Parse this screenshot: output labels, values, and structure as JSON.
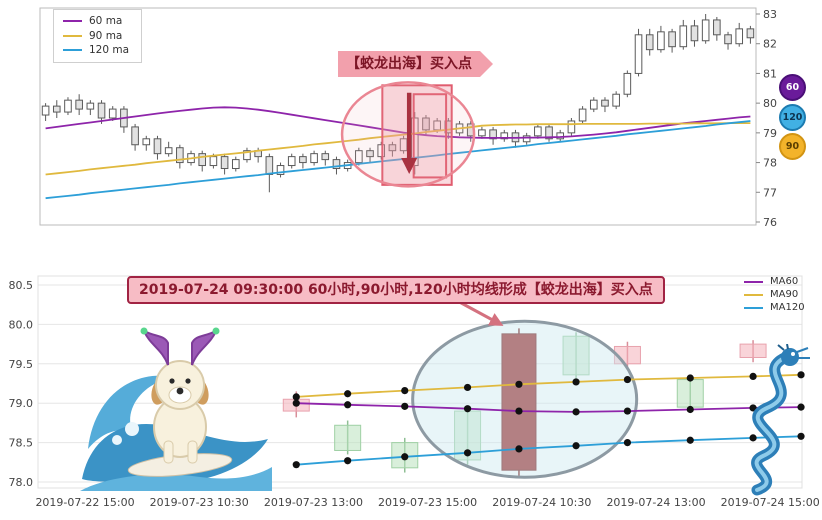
{
  "colors": {
    "ma60": "#8e24aa",
    "ma90": "#e0b93e",
    "ma120": "#2d9fd8",
    "axis_text": "#444444",
    "grid": "#e6e6e6",
    "highlight_fill": "rgba(240,150,162,0.35)",
    "highlight_stroke": "#e05c6e",
    "arrow": "#a83240",
    "big_candle": "#9e2b2b",
    "up_fill": "rgba(244,176,186,0.55)",
    "up_stroke": "#e8a2ad",
    "down_fill": "rgba(186,226,190,0.55)",
    "down_stroke": "#9fd0a4",
    "dot": "#111111",
    "ellipse_bottom_fill": "rgba(205,232,240,0.45)",
    "ellipse_bottom_stroke": "#8d9aa3"
  },
  "top_chart": {
    "legend": [
      {
        "label": "60 ma",
        "color": "#8e24aa"
      },
      {
        "label": "90 ma",
        "color": "#e0b93e"
      },
      {
        "label": "120 ma",
        "color": "#2d9fd8"
      }
    ],
    "annotation": {
      "text": "【蛟龙出海】买入点"
    },
    "badges": [
      {
        "label": "60",
        "bg": "#6a1b9a",
        "fg": "#ffffff",
        "border": "#4a0f77"
      },
      {
        "label": "120",
        "bg": "#41b0e4",
        "fg": "#0d3550",
        "border": "#1c7bb0"
      },
      {
        "label": "90",
        "bg": "#f3b32a",
        "fg": "#5a3d00",
        "border": "#d29413"
      }
    ]
  },
  "bottom_chart": {
    "legend": [
      {
        "label": "MA60",
        "color": "#8e24aa"
      },
      {
        "label": "MA90",
        "color": "#e0b93e"
      },
      {
        "label": "MA120",
        "color": "#2d9fd8"
      }
    ],
    "annotation": {
      "text": "2019-07-24 09:30:00 60小时,90小时,120小时均线形成【蛟龙出海】买入点"
    }
  },
  "chart_data": [
    {
      "type": "candlestick",
      "title": "",
      "xlabel": "",
      "ylabel": "",
      "legend_position": "top-left",
      "grid": false,
      "y_ticks": [
        83,
        82,
        81,
        80,
        79,
        78,
        77,
        76
      ],
      "ylim": [
        75.9,
        83.2
      ],
      "candles": [
        [
          79.6,
          80.0,
          79.4,
          79.9
        ],
        [
          79.9,
          80.1,
          79.5,
          79.7
        ],
        [
          79.7,
          80.2,
          79.6,
          80.1
        ],
        [
          80.1,
          80.3,
          79.6,
          79.8
        ],
        [
          79.8,
          80.1,
          79.6,
          80.0
        ],
        [
          80.0,
          80.1,
          79.3,
          79.5
        ],
        [
          79.5,
          79.9,
          79.4,
          79.8
        ],
        [
          79.8,
          79.9,
          79.0,
          79.2
        ],
        [
          79.2,
          79.3,
          78.4,
          78.6
        ],
        [
          78.6,
          78.9,
          78.4,
          78.8
        ],
        [
          78.8,
          78.9,
          78.1,
          78.3
        ],
        [
          78.3,
          78.7,
          78.2,
          78.5
        ],
        [
          78.5,
          78.6,
          77.8,
          78.0
        ],
        [
          78.0,
          78.4,
          77.9,
          78.3
        ],
        [
          78.3,
          78.4,
          77.7,
          77.9
        ],
        [
          77.9,
          78.3,
          77.8,
          78.2
        ],
        [
          78.2,
          78.3,
          77.6,
          77.8
        ],
        [
          77.8,
          78.2,
          77.7,
          78.1
        ],
        [
          78.1,
          78.5,
          78.0,
          78.4
        ],
        [
          78.4,
          78.5,
          78.0,
          78.2
        ],
        [
          78.2,
          78.3,
          77.0,
          77.6
        ],
        [
          77.6,
          78.0,
          77.5,
          77.9
        ],
        [
          77.9,
          78.3,
          77.8,
          78.2
        ],
        [
          78.2,
          78.3,
          77.8,
          78.0
        ],
        [
          78.0,
          78.4,
          77.9,
          78.3
        ],
        [
          78.3,
          78.4,
          77.9,
          78.1
        ],
        [
          78.1,
          78.2,
          77.6,
          77.8
        ],
        [
          77.8,
          78.1,
          77.7,
          78.0
        ],
        [
          78.0,
          78.5,
          77.9,
          78.4
        ],
        [
          78.4,
          78.5,
          78.0,
          78.2
        ],
        [
          78.2,
          78.7,
          78.1,
          78.6
        ],
        [
          78.6,
          78.7,
          78.2,
          78.4
        ],
        [
          78.4,
          78.9,
          78.3,
          78.8
        ],
        [
          77.9,
          79.7,
          77.6,
          79.5
        ],
        [
          79.5,
          79.6,
          78.9,
          79.1
        ],
        [
          79.1,
          79.5,
          79.0,
          79.4
        ],
        [
          79.4,
          79.5,
          78.8,
          79.0
        ],
        [
          79.0,
          79.4,
          78.9,
          79.3
        ],
        [
          79.3,
          79.4,
          78.7,
          78.9
        ],
        [
          78.9,
          79.2,
          78.8,
          79.1
        ],
        [
          79.1,
          79.2,
          78.6,
          78.8
        ],
        [
          78.8,
          79.1,
          78.7,
          79.0
        ],
        [
          79.0,
          79.1,
          78.5,
          78.7
        ],
        [
          78.7,
          79.0,
          78.6,
          78.9
        ],
        [
          78.9,
          79.3,
          78.8,
          79.2
        ],
        [
          79.2,
          79.3,
          78.7,
          78.8
        ],
        [
          78.8,
          79.1,
          78.7,
          79.0
        ],
        [
          79.0,
          79.5,
          78.9,
          79.4
        ],
        [
          79.4,
          79.9,
          79.3,
          79.8
        ],
        [
          79.8,
          80.2,
          79.7,
          80.1
        ],
        [
          80.1,
          80.2,
          79.7,
          79.9
        ],
        [
          79.9,
          80.4,
          79.8,
          80.3
        ],
        [
          80.3,
          81.1,
          80.2,
          81.0
        ],
        [
          81.0,
          82.5,
          80.9,
          82.3
        ],
        [
          82.3,
          82.5,
          81.6,
          81.8
        ],
        [
          81.8,
          82.6,
          81.7,
          82.4
        ],
        [
          82.4,
          82.5,
          81.7,
          81.9
        ],
        [
          81.9,
          82.8,
          81.8,
          82.6
        ],
        [
          82.6,
          82.8,
          81.9,
          82.1
        ],
        [
          82.1,
          83.0,
          82.0,
          82.8
        ],
        [
          82.8,
          82.9,
          82.1,
          82.3
        ],
        [
          82.3,
          82.4,
          81.8,
          82.0
        ],
        [
          82.0,
          82.7,
          81.9,
          82.5
        ],
        [
          82.5,
          82.6,
          82.0,
          82.2
        ]
      ],
      "series": [
        {
          "name": "60 ma",
          "color": "#8e24aa",
          "values": [
            79.15,
            79.2,
            79.25,
            79.3,
            79.35,
            79.4,
            79.45,
            79.5,
            79.55,
            79.6,
            79.65,
            79.7,
            79.74,
            79.78,
            79.82,
            79.85,
            79.86,
            79.85,
            79.82,
            79.78,
            79.73,
            79.67,
            79.61,
            79.55,
            79.49,
            79.43,
            79.37,
            79.31,
            79.25,
            79.19,
            79.13,
            79.07,
            79.01,
            78.96,
            78.92,
            78.89,
            78.87,
            78.85,
            78.84,
            78.83,
            78.83,
            78.83,
            78.83,
            78.84,
            78.84,
            78.85,
            78.86,
            78.88,
            78.91,
            78.94,
            78.98,
            79.02,
            79.07,
            79.12,
            79.17,
            79.22,
            79.27,
            79.32,
            79.36,
            79.4,
            79.44,
            79.48,
            79.52,
            79.55
          ]
        },
        {
          "name": "90 ma",
          "color": "#e0b93e",
          "values": [
            77.6,
            77.64,
            77.68,
            77.72,
            77.77,
            77.81,
            77.85,
            77.89,
            77.93,
            77.98,
            78.02,
            78.06,
            78.1,
            78.14,
            78.19,
            78.23,
            78.27,
            78.31,
            78.35,
            78.4,
            78.44,
            78.48,
            78.52,
            78.56,
            78.61,
            78.65,
            78.69,
            78.73,
            78.77,
            78.82,
            78.86,
            78.9,
            78.94,
            78.98,
            79.03,
            79.07,
            79.11,
            79.15,
            79.19,
            79.24,
            79.26,
            79.27,
            79.28,
            79.28,
            79.29,
            79.29,
            79.29,
            79.29,
            79.3,
            79.3,
            79.3,
            79.3,
            79.3,
            79.3,
            79.31,
            79.31,
            79.31,
            79.31,
            79.32,
            79.32,
            79.32,
            79.33,
            79.33,
            79.33
          ]
        },
        {
          "name": "120 ma",
          "color": "#2d9fd8",
          "values": [
            76.8,
            76.84,
            76.88,
            76.92,
            76.97,
            77.01,
            77.05,
            77.09,
            77.13,
            77.17,
            77.21,
            77.25,
            77.3,
            77.34,
            77.38,
            77.42,
            77.46,
            77.5,
            77.54,
            77.58,
            77.63,
            77.67,
            77.71,
            77.75,
            77.79,
            77.83,
            77.87,
            77.91,
            77.96,
            78.0,
            78.04,
            78.08,
            78.12,
            78.16,
            78.2,
            78.24,
            78.29,
            78.33,
            78.37,
            78.41,
            78.45,
            78.49,
            78.53,
            78.57,
            78.62,
            78.66,
            78.7,
            78.74,
            78.78,
            78.82,
            78.86,
            78.9,
            78.95,
            78.99,
            79.03,
            79.07,
            79.11,
            79.15,
            79.19,
            79.23,
            79.28,
            79.32,
            79.36,
            79.4
          ]
        }
      ],
      "highlight": {
        "index_range": [
          30.6,
          36.8
        ],
        "price_range": [
          77.25,
          80.6
        ]
      },
      "highlight_inner": {
        "index_range": [
          33.4,
          36.3
        ],
        "price_range": [
          77.5,
          80.3
        ]
      },
      "ellipse": {
        "index": 32.9,
        "price": 78.95
      },
      "arrow": {
        "index": 33.0,
        "from_price": 80.35,
        "to_price": 77.75
      },
      "buy_annotation": "【蛟龙出海】买入点"
    },
    {
      "type": "candlestick",
      "title": "",
      "xlabel": "",
      "ylabel": "",
      "legend_position": "top-right",
      "grid": true,
      "x_tick_labels": [
        "2019-07-22 15:00",
        "2019-07-23 10:30",
        "2019-07-23 13:00",
        "2019-07-23 15:00",
        "2019-07-24 10:30",
        "2019-07-24 13:00",
        "2019-07-24 15:00"
      ],
      "y_ticks": [
        80.5,
        80.0,
        79.5,
        79.0,
        78.5,
        78.0
      ],
      "ylim": [
        77.85,
        80.6
      ],
      "candles": [
        {
          "t": 1.85,
          "o": 78.9,
          "h": 79.15,
          "l": 78.82,
          "c": 79.05,
          "style": "up"
        },
        {
          "t": 2.3,
          "o": 78.72,
          "h": 78.78,
          "l": 78.35,
          "c": 78.4,
          "style": "down"
        },
        {
          "t": 2.8,
          "o": 78.5,
          "h": 78.56,
          "l": 78.12,
          "c": 78.18,
          "style": "down"
        },
        {
          "t": 3.35,
          "o": 78.9,
          "h": 78.96,
          "l": 78.22,
          "c": 78.28,
          "style": "down"
        },
        {
          "t": 3.8,
          "o": 78.15,
          "h": 79.95,
          "l": 78.08,
          "c": 79.88,
          "style": "big_up"
        },
        {
          "t": 4.3,
          "o": 79.85,
          "h": 79.9,
          "l": 79.3,
          "c": 79.36,
          "style": "down"
        },
        {
          "t": 4.75,
          "o": 79.5,
          "h": 79.78,
          "l": 79.45,
          "c": 79.72,
          "style": "up"
        },
        {
          "t": 5.3,
          "o": 79.3,
          "h": 79.36,
          "l": 78.88,
          "c": 78.95,
          "style": "down"
        },
        {
          "t": 5.85,
          "o": 79.58,
          "h": 79.8,
          "l": 79.52,
          "c": 79.75,
          "style": "up"
        }
      ],
      "series": [
        {
          "name": "MA60",
          "color": "#8e24aa",
          "t": [
            1.85,
            2.3,
            2.8,
            3.35,
            3.8,
            4.3,
            4.75,
            5.3,
            5.85,
            6.27
          ],
          "values": [
            79.0,
            78.98,
            78.96,
            78.93,
            78.9,
            78.89,
            78.9,
            78.92,
            78.94,
            78.95
          ]
        },
        {
          "name": "MA90",
          "color": "#e0b93e",
          "t": [
            1.85,
            2.3,
            2.8,
            3.35,
            3.8,
            4.3,
            4.75,
            5.3,
            5.85,
            6.27
          ],
          "values": [
            79.08,
            79.12,
            79.16,
            79.2,
            79.24,
            79.27,
            79.3,
            79.32,
            79.34,
            79.36
          ]
        },
        {
          "name": "MA120",
          "color": "#2d9fd8",
          "t": [
            1.85,
            2.3,
            2.8,
            3.35,
            3.8,
            4.3,
            4.75,
            5.3,
            5.85,
            6.27
          ],
          "values": [
            78.22,
            78.27,
            78.32,
            78.37,
            78.42,
            78.46,
            78.5,
            78.53,
            78.56,
            78.58
          ]
        }
      ],
      "ellipse": {
        "t": 3.85,
        "price": 79.05
      },
      "annotation": "2019-07-24 09:30:00 60小时,90小时,120小时均线形成【蛟龙出海】买入点"
    }
  ]
}
